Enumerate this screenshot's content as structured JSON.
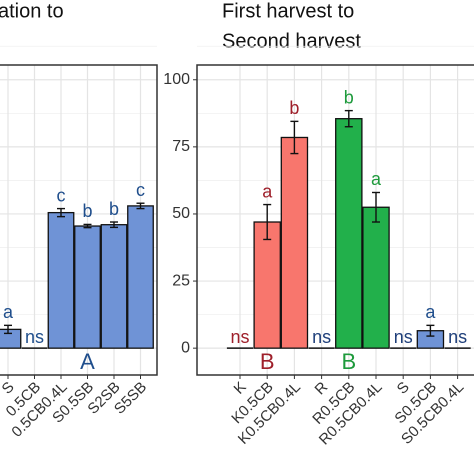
{
  "chart_data": [
    {
      "type": "bar",
      "title": [
        "ation to"
      ],
      "categories": [
        "S",
        "0.5CB",
        "0.5CB0.4L",
        "S0.5SB",
        "S2SB",
        "S5SB"
      ],
      "values": [
        7,
        0,
        50.5,
        45.5,
        46,
        53
      ],
      "errors": [
        1.5,
        0,
        1.5,
        0.6,
        1,
        1
      ],
      "letters": [
        "a",
        "ns",
        "c",
        "b",
        "b",
        "c"
      ],
      "group_letters": [
        null,
        null,
        null,
        "A",
        null,
        null
      ],
      "colors": [
        "#6f93d6",
        "#6f93d6",
        "#6f93d6",
        "#6f93d6",
        "#6f93d6",
        "#6f93d6"
      ],
      "letter_colors": [
        "#1f4e8c",
        "#1f4e8c",
        "#1f4e8c",
        "#1f4e8c",
        "#1f4e8c",
        "#1f4e8c"
      ],
      "ylim": [
        -10,
        105.5
      ],
      "ygrid": [
        0,
        25,
        50,
        75,
        100
      ]
    },
    {
      "type": "bar",
      "title": [
        "First harvest to",
        "Second harvest"
      ],
      "categories": [
        "K",
        "K0.5CB",
        "K0.5CB0.4L",
        "R",
        "R0.5CB",
        "R0.5CB0.4L",
        "S",
        "S0.5CB",
        "S0.5CB0.4L"
      ],
      "values": [
        0,
        47,
        78.5,
        0,
        85.5,
        52.5,
        0,
        6.5,
        0
      ],
      "errors": [
        0,
        6.5,
        6,
        0,
        3,
        5.5,
        0,
        2,
        0
      ],
      "letters": [
        "ns",
        "a",
        "b",
        "ns",
        "b",
        "a",
        "ns",
        "a",
        "ns"
      ],
      "group_letters": [
        null,
        "B",
        null,
        null,
        "B",
        null,
        null,
        null,
        null
      ],
      "colors": [
        "#f8766d",
        "#f8766d",
        "#f8766d",
        "#22b04b",
        "#22b04b",
        "#22b04b",
        "#6f93d6",
        "#6f93d6",
        "#6f93d6"
      ],
      "letter_colors": [
        "#9e1f2a",
        "#9e1f2a",
        "#9e1f2a",
        "#1f3f7a",
        "#1e9a3c",
        "#1e9a3c",
        "#1f3f7a",
        "#1f4e8c",
        "#1f3f7a"
      ],
      "ylim": [
        -10,
        105.5
      ],
      "yticks": [
        0,
        25,
        50,
        75,
        100
      ]
    }
  ]
}
